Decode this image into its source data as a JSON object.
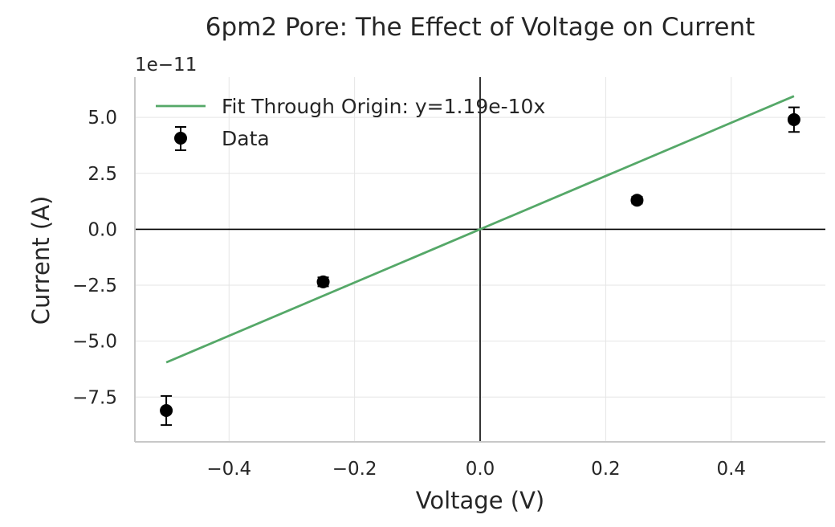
{
  "chart_data": {
    "type": "scatter",
    "title": "6pm2 Pore: The Effect of Voltage on Current",
    "xlabel": "Voltage (V)",
    "ylabel": "Current (A)",
    "y_offset_label": "1e−11",
    "xlim": [
      -0.55,
      0.55
    ],
    "ylim": [
      -9.5,
      6.8
    ],
    "x_ticks": [
      -0.4,
      -0.2,
      0.0,
      0.2,
      0.4
    ],
    "x_tick_labels": [
      "−0.4",
      "−0.2",
      "0.0",
      "0.2",
      "0.4"
    ],
    "y_ticks": [
      5.0,
      2.5,
      0.0,
      -2.5,
      -5.0,
      -7.5
    ],
    "y_tick_labels": [
      "5.0",
      "2.5",
      "0.0",
      "−2.5",
      "−5.0",
      "−7.5"
    ],
    "grid": true,
    "legend_position": "top-left",
    "series": [
      {
        "name": "Fit Through Origin: y=1.19e-10x",
        "kind": "line",
        "color": "#55a868",
        "x": [
          -0.5,
          0.5
        ],
        "y": [
          -5.95,
          5.95
        ]
      },
      {
        "name": "Data",
        "kind": "errorbar",
        "color": "#000000",
        "x": [
          -0.5,
          -0.25,
          0.25,
          0.5
        ],
        "y": [
          -8.1,
          -2.35,
          1.3,
          4.9
        ],
        "yerr": [
          0.65,
          0.2,
          0.15,
          0.55
        ]
      }
    ]
  }
}
